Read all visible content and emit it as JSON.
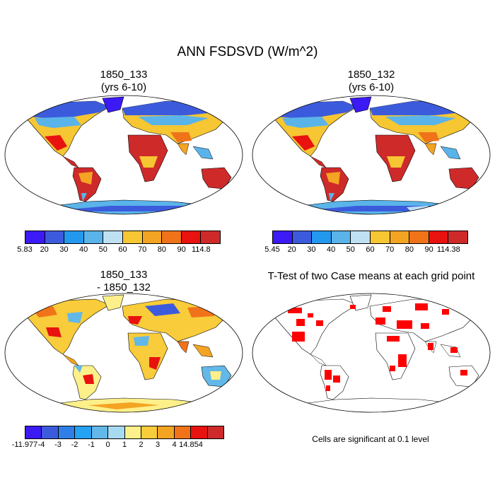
{
  "figure": {
    "title": "ANN FSDSVD (W/m^2)"
  },
  "panels": {
    "top_left": {
      "title_line1": "1850_133",
      "title_line2": "(yrs 6-10)"
    },
    "top_right": {
      "title_line1": "1850_132",
      "title_line2": "(yrs 6-10)"
    },
    "bottom_left": {
      "title_line1": "1850_133",
      "title_line2": "- 1850_132"
    },
    "bottom_right": {
      "title_line1": "T-Test of two Case means at each grid point"
    }
  },
  "colorbars": {
    "top_left": {
      "labels": [
        "5.83",
        "20",
        "30",
        "40",
        "50",
        "60",
        "70",
        "80",
        "90",
        "114.8"
      ],
      "colors": [
        "#3b1af5",
        "#3c5bdc",
        "#2398ef",
        "#5ab4ea",
        "#bfe0f3",
        "#f6c633",
        "#f4a423",
        "#f07319",
        "#e8120f",
        "#cf2a2a"
      ]
    },
    "top_right": {
      "labels": [
        "5.45",
        "20",
        "30",
        "40",
        "50",
        "60",
        "70",
        "80",
        "90",
        "114.38"
      ],
      "colors": [
        "#3b1af5",
        "#3c5bdc",
        "#2398ef",
        "#5ab4ea",
        "#bfe0f3",
        "#f6c633",
        "#f4a423",
        "#f07319",
        "#e8120f",
        "#cf2a2a"
      ]
    },
    "bottom_left": {
      "labels": [
        "-11.977",
        "-4",
        "-3",
        "-2",
        "-1",
        "0",
        "1",
        "2",
        "3",
        "4",
        "14.854"
      ],
      "colors": [
        "#3b1af5",
        "#3c5bdc",
        "#2f7fe8",
        "#25a2f2",
        "#62b8e8",
        "#a6daf0",
        "#fdf08a",
        "#f8cc3a",
        "#f4a423",
        "#f07319",
        "#e8120f",
        "#cf2a2a"
      ]
    }
  },
  "notes": {
    "significance": "Cells are significant at 0.1 level"
  },
  "colors": {
    "ocean": "#ffffff",
    "coast": "#000000",
    "significance": "#ff0000"
  }
}
